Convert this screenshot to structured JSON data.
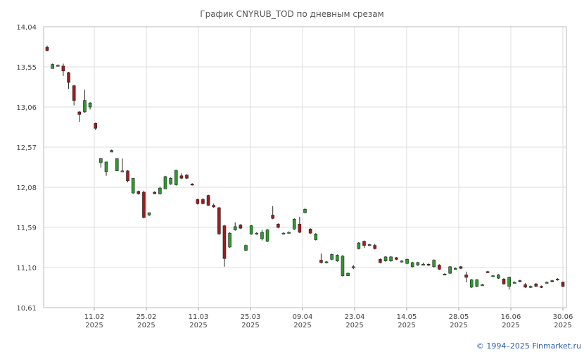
{
  "chart_data": {
    "type": "candlestick",
    "title": "График CNYRUB_TOD по дневным срезам",
    "y_ticks": [
      "14,04",
      "13,55",
      "13,06",
      "12,57",
      "12,08",
      "11,59",
      "11,10",
      "10,61"
    ],
    "ylim": [
      10.61,
      14.04
    ],
    "x_ticks": [
      {
        "date": "11.02",
        "year": "2025"
      },
      {
        "date": "25.02",
        "year": "2025"
      },
      {
        "date": "11.03",
        "year": "2025"
      },
      {
        "date": "25.03",
        "year": "2025"
      },
      {
        "date": "09.04",
        "year": "2025"
      },
      {
        "date": "23.04",
        "year": "2025"
      },
      {
        "date": "14.05",
        "year": "2025"
      },
      {
        "date": "28.05",
        "year": "2025"
      },
      {
        "date": "16.06",
        "year": "2025"
      },
      {
        "date": "30.06",
        "year": "2025"
      }
    ],
    "grid": true,
    "up_color": "#2e9a2e",
    "down_color": "#a01c1c",
    "candles": [
      [
        13.79,
        13.75,
        13.81,
        13.74
      ],
      [
        13.53,
        13.58,
        13.59,
        13.53
      ],
      [
        13.57,
        13.57,
        13.58,
        13.56
      ],
      [
        13.56,
        13.5,
        13.59,
        13.44
      ],
      [
        13.48,
        13.36,
        13.49,
        13.28
      ],
      [
        13.32,
        13.14,
        13.33,
        13.08
      ],
      [
        13.0,
        12.97,
        13.01,
        12.88
      ],
      [
        13.0,
        13.14,
        13.27,
        12.99
      ],
      [
        13.06,
        13.11,
        13.12,
        13.03
      ],
      [
        12.86,
        12.8,
        12.87,
        12.78
      ],
      [
        12.38,
        12.43,
        12.44,
        12.32
      ],
      [
        12.27,
        12.39,
        12.39,
        12.22
      ],
      [
        12.51,
        12.53,
        12.54,
        12.51
      ],
      [
        12.28,
        12.43,
        12.43,
        12.28
      ],
      [
        12.28,
        12.28,
        12.43,
        12.28
      ],
      [
        12.28,
        12.16,
        12.29,
        12.14
      ],
      [
        12.01,
        12.19,
        12.19,
        12.0
      ],
      [
        12.03,
        12.0,
        12.04,
        11.99
      ],
      [
        12.02,
        11.71,
        12.04,
        11.7
      ],
      [
        11.74,
        11.77,
        11.77,
        11.73
      ],
      [
        12.02,
        12.0,
        12.03,
        12.0
      ],
      [
        12.0,
        12.07,
        12.09,
        11.99
      ],
      [
        12.06,
        12.21,
        12.22,
        12.06
      ],
      [
        12.12,
        12.19,
        12.2,
        12.11
      ],
      [
        12.11,
        12.29,
        12.29,
        12.1
      ],
      [
        12.22,
        12.19,
        12.25,
        12.18
      ],
      [
        12.23,
        12.19,
        12.24,
        12.18
      ],
      [
        12.12,
        12.11,
        12.13,
        12.1
      ],
      [
        11.93,
        11.88,
        11.94,
        11.87
      ],
      [
        11.93,
        11.88,
        11.95,
        11.87
      ],
      [
        11.98,
        11.86,
        11.99,
        11.85
      ],
      [
        11.86,
        11.84,
        11.88,
        11.83
      ],
      [
        11.83,
        11.51,
        11.84,
        11.5
      ],
      [
        11.61,
        11.21,
        11.62,
        11.11
      ],
      [
        11.35,
        11.52,
        11.53,
        11.34
      ],
      [
        11.56,
        11.6,
        11.65,
        11.55
      ],
      [
        11.62,
        11.58,
        11.63,
        11.57
      ],
      [
        11.31,
        11.37,
        11.38,
        11.3
      ],
      [
        11.51,
        11.61,
        11.62,
        11.5
      ],
      [
        11.51,
        11.52,
        11.53,
        11.5
      ],
      [
        11.45,
        11.53,
        11.56,
        11.43
      ],
      [
        11.42,
        11.56,
        11.57,
        11.41
      ],
      [
        11.74,
        11.7,
        11.85,
        11.69
      ],
      [
        11.63,
        11.59,
        11.64,
        11.58
      ],
      [
        11.52,
        11.52,
        11.53,
        11.51
      ],
      [
        11.53,
        11.53,
        11.54,
        11.52
      ],
      [
        11.57,
        11.69,
        11.7,
        11.56
      ],
      [
        11.63,
        11.53,
        11.72,
        11.52
      ],
      [
        11.77,
        11.81,
        11.83,
        11.76
      ],
      [
        11.57,
        11.52,
        11.58,
        11.51
      ],
      [
        11.44,
        11.51,
        11.52,
        11.43
      ],
      [
        11.19,
        11.16,
        11.27,
        11.15
      ],
      [
        11.16,
        11.17,
        11.18,
        11.15
      ],
      [
        11.2,
        11.26,
        11.27,
        11.19
      ],
      [
        11.18,
        11.25,
        11.26,
        11.17
      ],
      [
        11.0,
        11.24,
        11.25,
        10.99
      ],
      [
        11.0,
        11.03,
        11.04,
        11.0
      ],
      [
        11.1,
        11.11,
        11.13,
        11.08
      ],
      [
        11.33,
        11.4,
        11.41,
        11.32
      ],
      [
        11.42,
        11.37,
        11.43,
        11.34
      ],
      [
        11.37,
        11.38,
        11.39,
        11.36
      ],
      [
        11.37,
        11.33,
        11.39,
        11.32
      ],
      [
        11.2,
        11.16,
        11.21,
        11.15
      ],
      [
        11.18,
        11.23,
        11.24,
        11.17
      ],
      [
        11.18,
        11.23,
        11.24,
        11.17
      ],
      [
        11.22,
        11.2,
        11.23,
        11.19
      ],
      [
        11.17,
        11.18,
        11.19,
        11.16
      ],
      [
        11.15,
        11.2,
        11.21,
        11.14
      ],
      [
        11.11,
        11.16,
        11.17,
        11.1
      ],
      [
        11.13,
        11.16,
        11.17,
        11.12
      ],
      [
        11.14,
        11.14,
        11.16,
        11.13
      ],
      [
        11.14,
        11.13,
        11.15,
        11.12
      ],
      [
        11.11,
        11.19,
        11.2,
        11.1
      ],
      [
        11.13,
        11.08,
        11.14,
        11.07
      ],
      [
        11.02,
        11.02,
        11.03,
        11.01
      ],
      [
        11.03,
        11.11,
        11.12,
        11.02
      ],
      [
        11.09,
        11.09,
        11.1,
        11.08
      ],
      [
        11.11,
        11.09,
        11.12,
        11.08
      ],
      [
        11.01,
        10.98,
        11.05,
        10.92
      ],
      [
        10.86,
        10.95,
        10.96,
        10.85
      ],
      [
        10.87,
        10.95,
        10.96,
        10.86
      ],
      [
        10.89,
        10.89,
        10.9,
        10.88
      ],
      [
        11.05,
        11.04,
        11.06,
        11.03
      ],
      [
        11.0,
        11.0,
        11.01,
        10.99
      ],
      [
        10.97,
        11.01,
        11.02,
        10.96
      ],
      [
        10.96,
        10.9,
        10.97,
        10.89
      ],
      [
        10.87,
        10.98,
        10.99,
        10.83
      ],
      [
        10.92,
        10.92,
        10.93,
        10.91
      ],
      [
        10.94,
        10.93,
        10.95,
        10.92
      ],
      [
        10.89,
        10.86,
        10.91,
        10.85
      ],
      [
        10.86,
        10.87,
        10.88,
        10.85
      ],
      [
        10.9,
        10.87,
        10.91,
        10.86
      ],
      [
        10.87,
        10.86,
        10.88,
        10.85
      ],
      [
        10.92,
        10.92,
        10.93,
        10.91
      ],
      [
        10.94,
        10.93,
        10.95,
        10.92
      ],
      [
        10.95,
        10.96,
        10.97,
        10.94
      ],
      [
        10.92,
        10.87,
        10.93,
        10.86
      ]
    ]
  },
  "copyright": "© 1994–2025 Finmarket.ru"
}
